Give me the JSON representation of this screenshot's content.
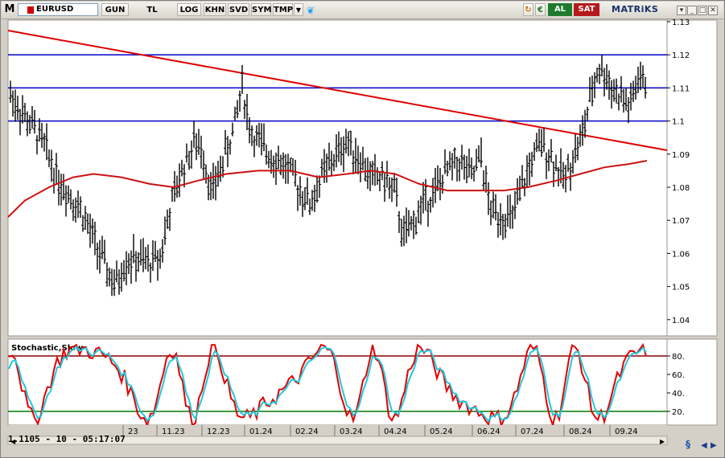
{
  "toolbar": {
    "app_letter": "M",
    "symbol": "EURUSD",
    "buttons": [
      "GUN",
      "TL",
      "LOG",
      "KHN",
      "SVD",
      "SYM",
      "TMP"
    ],
    "buy_label": "AL",
    "sell_label": "SAT",
    "brand": "MATRiKS"
  },
  "price_panel": {
    "y_ticks": [
      "1.13",
      "1.12",
      "1.11",
      "1.1",
      "1.09",
      "1.08",
      "1.07",
      "1.06",
      "1.05",
      "1.04"
    ],
    "horizontal_lines": [
      1.12,
      1.11,
      1.1
    ]
  },
  "indicator_panel": {
    "title": "Stochastic,Slow",
    "y_ticks": [
      "80.",
      "60.",
      "40.",
      "20."
    ],
    "levels": [
      80,
      20
    ]
  },
  "x_axis": {
    "labels": [
      "23",
      "11.23",
      "12.23",
      "01.24",
      "02.24",
      "03.24",
      "04.24",
      "05.24",
      "06.24",
      "07.24",
      "08.24",
      "09.24"
    ]
  },
  "status": {
    "readout": "1.1105 - 10 - 05:17:07"
  },
  "colors": {
    "candles": "#000000",
    "trendline": "#e00000",
    "moving_average": "#cc1111",
    "level_lines": "#0000c8",
    "stoch_fast": "#e00000",
    "stoch_slow": "#22c8dd",
    "level_80": "#8b0000",
    "level_20": "#007a00"
  }
}
